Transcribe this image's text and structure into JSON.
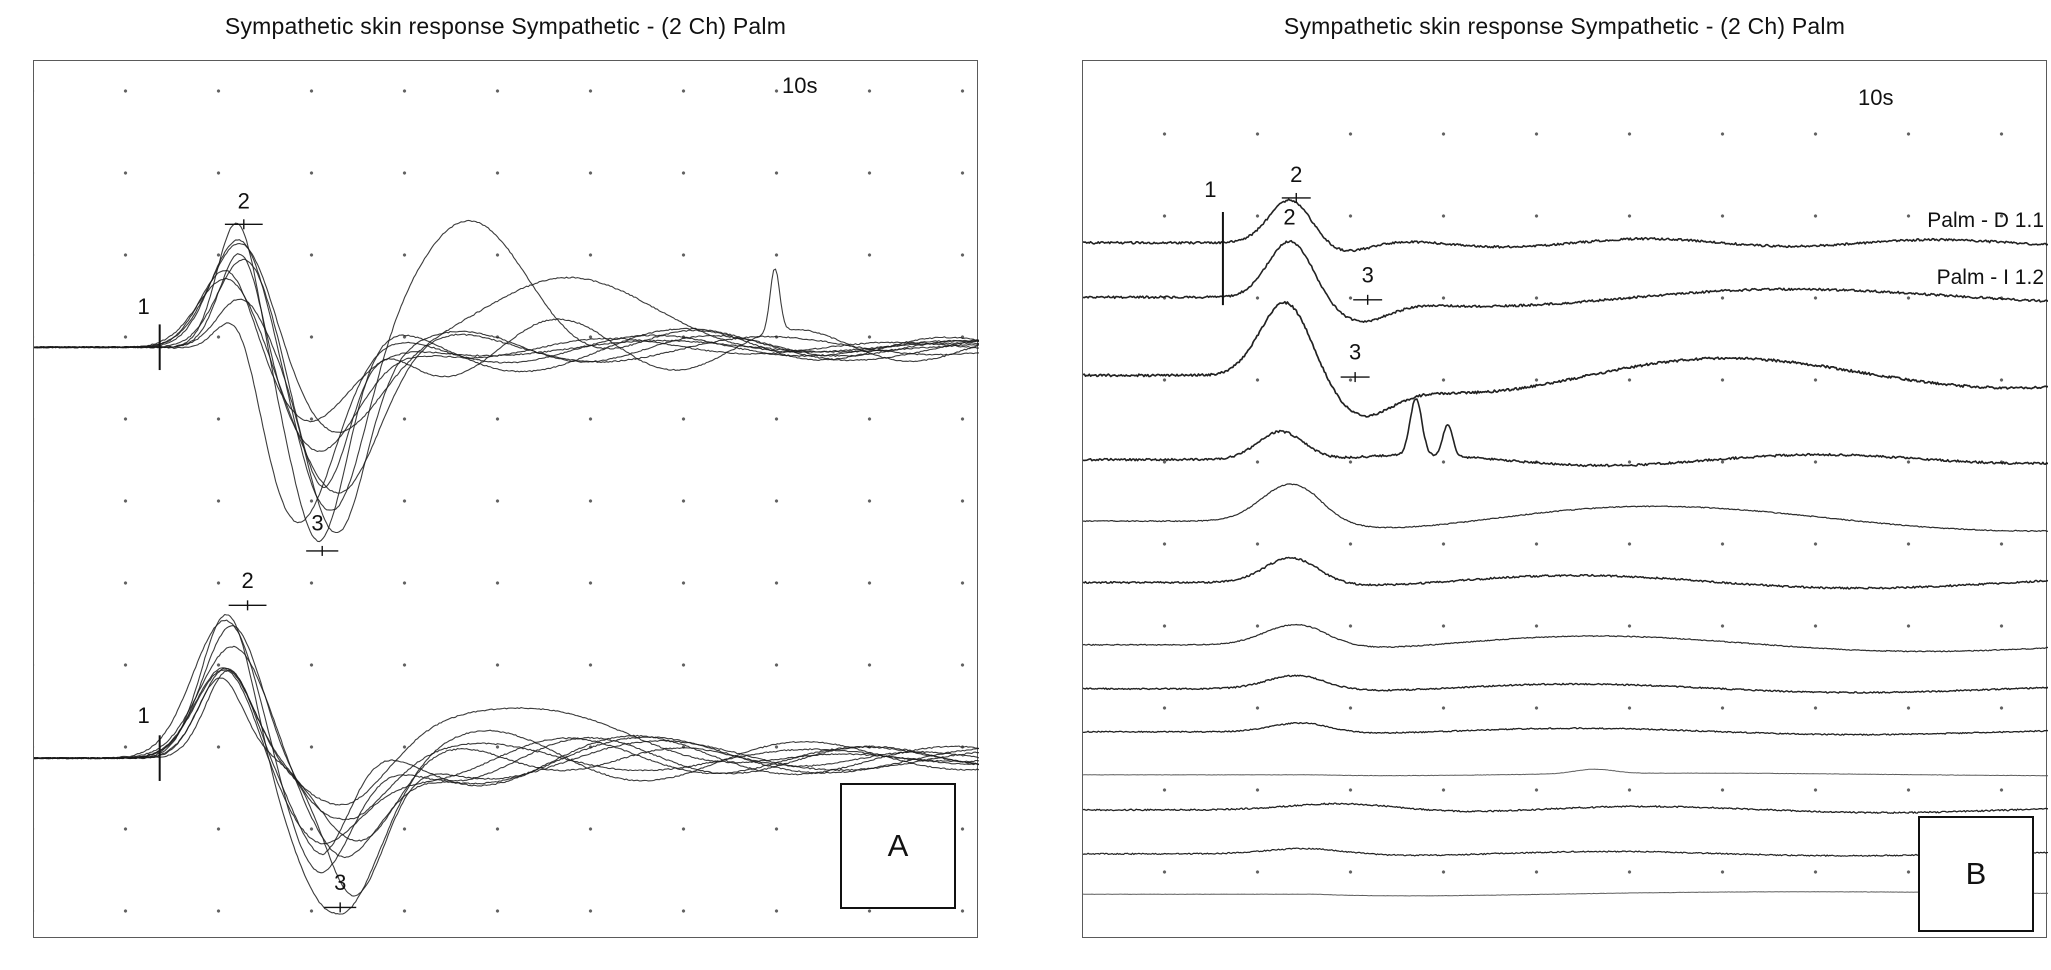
{
  "figure": {
    "panel_a": {
      "title": "Sympathetic skin response Sympathetic - (2 Ch) Palm",
      "time_scale_label": "10s",
      "corner_label": "A"
    },
    "panel_b": {
      "title": "Sympathetic skin response Sympathetic - (2 Ch) Palm",
      "time_scale_label": "10s",
      "corner_label": "B",
      "channel_labels": [
        "Palm - D 1.1",
        "Palm - I 1.2"
      ]
    }
  },
  "chart_data": [
    {
      "panel": "A",
      "type": "line",
      "title": "Sympathetic skin response Sympathetic - (2 Ch) Palm",
      "time_window": "10s",
      "grid": "dotted",
      "description": "Two palm channels, each with about nine superimposed sympathetic skin response sweeps; marker 1 = response onset, marker 2 = first peak, marker 3 = second (opposite-polarity) peak.",
      "clusters": [
        {
          "name": "channel-1-superimposed-sweeps",
          "n_sweeps": 9,
          "baseline": 0.326,
          "onset_x": 0.133,
          "peak": {
            "x": 0.215,
            "max_amp": 0.145,
            "width": 0.026
          },
          "trough": {
            "x": 0.302,
            "max_amp": 0.221,
            "width": 0.033
          },
          "tail": {
            "amp": 0.05,
            "wavelength": 0.3,
            "decay": 2.0
          },
          "extras": [
            {
              "type": "hump",
              "sweep": 2,
              "x": 0.47,
              "amp": 0.123,
              "width": 0.065
            },
            {
              "type": "hump",
              "sweep": 5,
              "x": 0.55,
              "amp": 0.075,
              "width": 0.09
            },
            {
              "type": "spike",
              "sweep": 7,
              "x": 0.784,
              "amp": 0.072,
              "width": 0.005
            }
          ],
          "markers": [
            {
              "label": "1",
              "label_x": 0.116,
              "label_y": 0.288,
              "tick": "v",
              "tick_x": 0.133,
              "tick_y1": 0.3,
              "tick_y2": 0.352
            },
            {
              "label": "2",
              "label_x": 0.222,
              "label_y": 0.168,
              "tick": "h",
              "tick_x": 0.222,
              "tick_y": 0.186,
              "tick_w": 0.04
            },
            {
              "label": "3",
              "label_x": 0.3,
              "label_y": 0.535,
              "tick": "h",
              "tick_x": 0.305,
              "tick_y": 0.558,
              "tick_w": 0.034
            }
          ]
        },
        {
          "name": "channel-2-superimposed-sweeps",
          "n_sweeps": 9,
          "baseline": 0.794,
          "onset_x": 0.133,
          "peak": {
            "x": 0.205,
            "max_amp": 0.169,
            "width": 0.028
          },
          "trough": {
            "x": 0.318,
            "max_amp": 0.176,
            "width": 0.035
          },
          "tail": {
            "amp": 0.045,
            "wavelength": 0.3,
            "decay": 2.0
          },
          "extras": [
            {
              "type": "hump",
              "sweep": 3,
              "x": 0.5,
              "amp": 0.065,
              "width": 0.085
            }
          ],
          "markers": [
            {
              "label": "1",
              "label_x": 0.116,
              "label_y": 0.754,
              "tick": "v",
              "tick_x": 0.133,
              "tick_y1": 0.768,
              "tick_y2": 0.82
            },
            {
              "label": "2",
              "label_x": 0.226,
              "label_y": 0.6,
              "tick": "h",
              "tick_x": 0.226,
              "tick_y": 0.62,
              "tick_w": 0.04
            },
            {
              "label": "3",
              "label_x": 0.324,
              "label_y": 0.944,
              "tick": "h",
              "tick_x": 0.324,
              "tick_y": 0.964,
              "tick_w": 0.034
            }
          ]
        }
      ]
    },
    {
      "panel": "B",
      "type": "line",
      "title": "Sympathetic skin response Sympathetic - (2 Ch) Palm",
      "time_window": "10s",
      "grid": "dotted",
      "channel_labels": [
        "Palm - D 1.1",
        "Palm - I 1.2"
      ],
      "description": "Raster of 13 consecutive sympathetic skin response sweeps from the palm showing progressive habituation of the response; markers 1 = onset, 2 = first peak, 3 = second peak.",
      "markers": [
        {
          "label": "1",
          "label_x": 0.132,
          "label_y": 0.155,
          "tick": "v",
          "tick_x": 0.145,
          "tick_y1": 0.172,
          "tick_y2": 0.278
        },
        {
          "label": "2",
          "label_x": 0.221,
          "label_y": 0.138,
          "tick": "h",
          "tick_x": 0.221,
          "tick_y": 0.156,
          "tick_w": 0.03
        },
        {
          "label": "2",
          "label_x": 0.214,
          "label_y": 0.186,
          "tick": "none"
        },
        {
          "label": "3",
          "label_x": 0.295,
          "label_y": 0.252,
          "tick": "h",
          "tick_x": 0.295,
          "tick_y": 0.272,
          "tick_w": 0.03
        },
        {
          "label": "3",
          "label_x": 0.282,
          "label_y": 0.34,
          "tick": "h",
          "tick_x": 0.282,
          "tick_y": 0.36,
          "tick_w": 0.03
        }
      ],
      "traces": [
        {
          "name": "sweep-01",
          "baseline": 0.207,
          "noise": 2.2,
          "stroke": 1.6,
          "color": "#161616",
          "bump": {
            "x": 0.215,
            "amp": 0.05,
            "width": 0.022
          },
          "dip": {
            "x": 0.272,
            "amp": 0.012,
            "width": 0.028
          },
          "slow": {
            "amp": 0.007,
            "wavelength": 0.3,
            "phase": 0.6
          }
        },
        {
          "name": "sweep-02",
          "baseline": 0.269,
          "noise": 2.2,
          "stroke": 1.6,
          "color": "#161616",
          "bump": {
            "x": 0.215,
            "amp": 0.065,
            "width": 0.023
          },
          "dip": {
            "x": 0.285,
            "amp": 0.025,
            "width": 0.03
          },
          "slow": {
            "amp": 0.016,
            "wavelength": 0.7,
            "phase": 3.3
          }
        },
        {
          "name": "sweep-03",
          "baseline": 0.358,
          "noise": 2.4,
          "stroke": 1.7,
          "color": "#161616",
          "bump": {
            "x": 0.21,
            "amp": 0.085,
            "width": 0.026
          },
          "dip": {
            "x": 0.287,
            "amp": 0.04,
            "width": 0.032
          },
          "slow": {
            "amp": 0.032,
            "wavelength": 0.6,
            "phase": 3.3
          }
        },
        {
          "name": "sweep-04",
          "baseline": 0.454,
          "noise": 2.2,
          "stroke": 1.6,
          "color": "#161616",
          "bump": {
            "x": 0.205,
            "amp": 0.032,
            "width": 0.024
          },
          "spikes": [
            {
              "x": 0.345,
              "amp": 0.065,
              "width": 0.006
            },
            {
              "x": 0.378,
              "amp": 0.036,
              "width": 0.005
            }
          ],
          "slow": {
            "amp": 0.01,
            "wavelength": 0.45,
            "phase": 0.5
          }
        },
        {
          "name": "sweep-05",
          "baseline": 0.524,
          "noise": 1.0,
          "stroke": 1.2,
          "color": "#222222",
          "bump": {
            "x": 0.215,
            "amp": 0.042,
            "width": 0.03
          },
          "slow": {
            "amp": 0.026,
            "wavelength": 0.8,
            "phase": 5.0
          }
        },
        {
          "name": "sweep-06",
          "baseline": 0.594,
          "noise": 1.8,
          "stroke": 1.5,
          "color": "#161616",
          "bump": {
            "x": 0.215,
            "amp": 0.028,
            "width": 0.027
          },
          "slow": {
            "amp": 0.012,
            "wavelength": 0.6,
            "phase": 5.0
          }
        },
        {
          "name": "sweep-07",
          "baseline": 0.665,
          "noise": 1.0,
          "stroke": 1.2,
          "color": "#222222",
          "bump": {
            "x": 0.22,
            "amp": 0.023,
            "width": 0.032
          },
          "slow": {
            "amp": 0.015,
            "wavelength": 0.7,
            "phase": 5.2
          }
        },
        {
          "name": "sweep-08",
          "baseline": 0.715,
          "noise": 1.4,
          "stroke": 1.4,
          "color": "#161616",
          "bump": {
            "x": 0.22,
            "amp": 0.015,
            "width": 0.03
          },
          "slow": {
            "amp": 0.008,
            "wavelength": 0.6,
            "phase": 5.0
          }
        },
        {
          "name": "sweep-09",
          "baseline": 0.764,
          "noise": 1.2,
          "stroke": 1.3,
          "color": "#161616",
          "bump": {
            "x": 0.225,
            "amp": 0.01,
            "width": 0.03
          },
          "slow": {
            "amp": 0.006,
            "wavelength": 0.6,
            "phase": 5.0
          }
        },
        {
          "name": "sweep-10",
          "baseline": 0.813,
          "noise": 0.35,
          "stroke": 1.0,
          "color": "#555555",
          "bump": {
            "x": 0.53,
            "amp": 0.005,
            "width": 0.02
          },
          "slow": {
            "amp": 0.003,
            "wavelength": 0.9,
            "phase": 5.0
          }
        },
        {
          "name": "sweep-11",
          "baseline": 0.853,
          "noise": 1.5,
          "stroke": 1.3,
          "color": "#161616",
          "bump": {
            "x": 0.28,
            "amp": 0.008,
            "width": 0.06
          },
          "slow": {
            "amp": 0.006,
            "wavelength": 0.5,
            "phase": 3.5
          }
        },
        {
          "name": "sweep-12",
          "baseline": 0.903,
          "noise": 1.3,
          "stroke": 1.2,
          "color": "#161616",
          "bump": {
            "x": 0.23,
            "amp": 0.006,
            "width": 0.04
          },
          "slow": {
            "amp": 0.004,
            "wavelength": 0.5,
            "phase": 4.0
          }
        },
        {
          "name": "sweep-13",
          "baseline": 0.949,
          "noise": 0.3,
          "stroke": 1.0,
          "color": "#555555",
          "slow": {
            "amp": 0.005,
            "wavelength": 1.2,
            "phase": 5.0
          }
        }
      ]
    }
  ]
}
